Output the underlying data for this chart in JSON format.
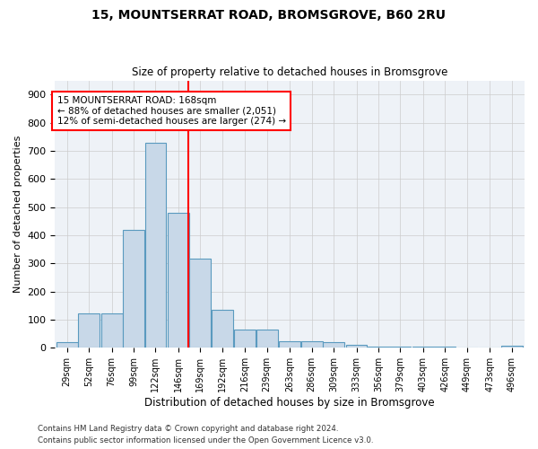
{
  "title": "15, MOUNTSERRAT ROAD, BROMSGROVE, B60 2RU",
  "subtitle": "Size of property relative to detached houses in Bromsgrove",
  "xlabel": "Distribution of detached houses by size in Bromsgrove",
  "ylabel": "Number of detached properties",
  "bar_color": "#c8d8e8",
  "bar_edge_color": "#5a9abf",
  "background_color": "#eef2f7",
  "grid_color": "#cccccc",
  "annotation_text": "15 MOUNTSERRAT ROAD: 168sqm\n← 88% of detached houses are smaller (2,051)\n12% of semi-detached houses are larger (274) →",
  "property_size": 168,
  "vline_color": "red",
  "categories": [
    "29sqm",
    "52sqm",
    "76sqm",
    "99sqm",
    "122sqm",
    "146sqm",
    "169sqm",
    "192sqm",
    "216sqm",
    "239sqm",
    "263sqm",
    "286sqm",
    "309sqm",
    "333sqm",
    "356sqm",
    "379sqm",
    "403sqm",
    "426sqm",
    "449sqm",
    "473sqm",
    "496sqm"
  ],
  "bin_edges": [
    29,
    52,
    76,
    99,
    122,
    146,
    169,
    192,
    216,
    239,
    263,
    286,
    309,
    333,
    356,
    379,
    403,
    426,
    449,
    473,
    496
  ],
  "bin_width": 23,
  "values": [
    20,
    122,
    122,
    420,
    730,
    480,
    316,
    135,
    65,
    65,
    25,
    22,
    20,
    10,
    5,
    5,
    5,
    3,
    0,
    0,
    8
  ],
  "ylim": [
    0,
    950
  ],
  "yticks": [
    0,
    100,
    200,
    300,
    400,
    500,
    600,
    700,
    800,
    900
  ],
  "footnote1": "Contains HM Land Registry data © Crown copyright and database right 2024.",
  "footnote2": "Contains public sector information licensed under the Open Government Licence v3.0."
}
